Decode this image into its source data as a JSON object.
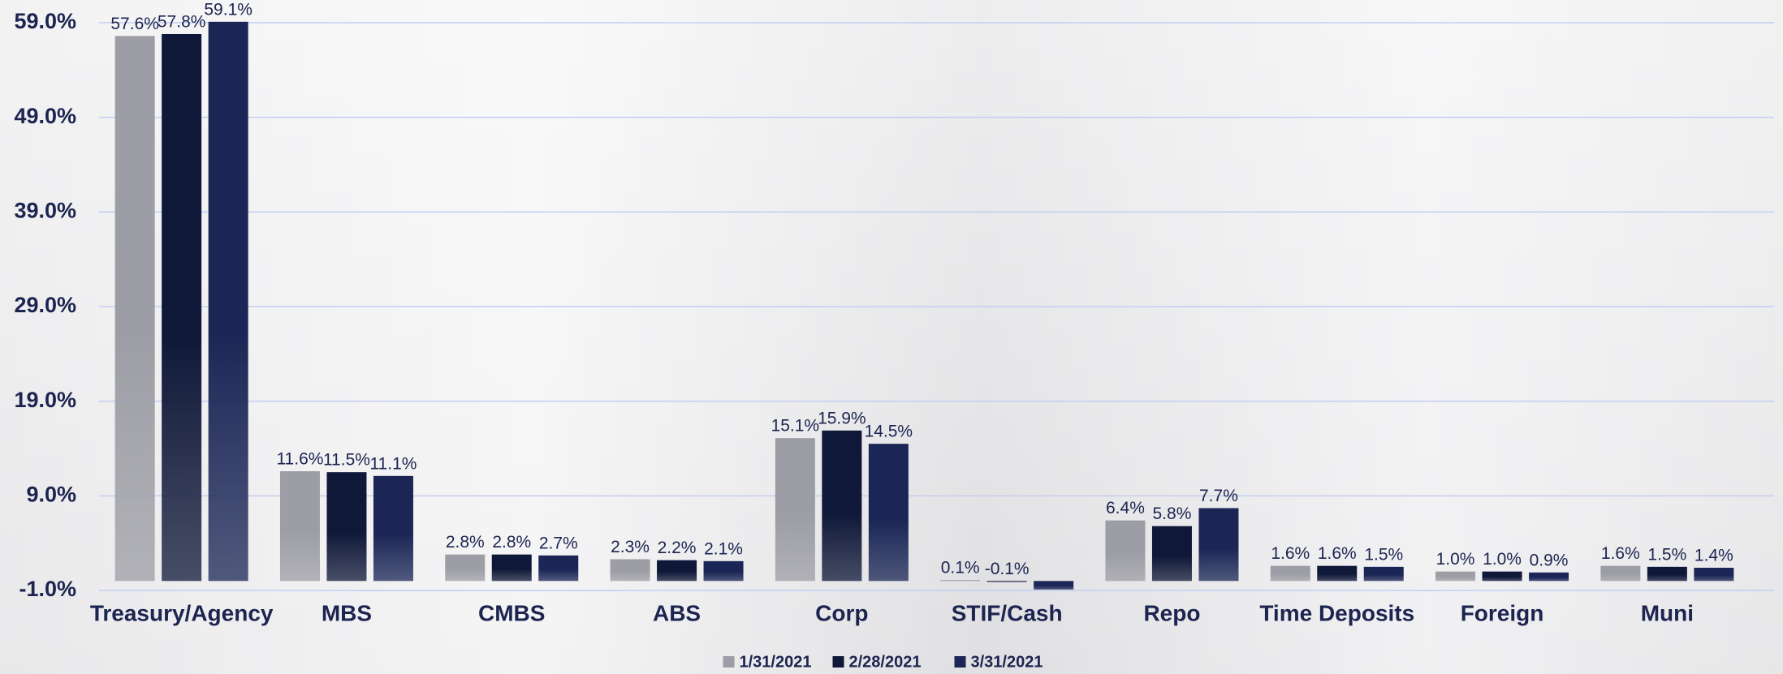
{
  "chart_data": {
    "type": "bar",
    "categories": [
      "Treasury/Agency",
      "MBS",
      "CMBS",
      "ABS",
      "Corp",
      "STIF/Cash",
      "Repo",
      "Time Deposits",
      "Foreign",
      "Muni"
    ],
    "series": [
      {
        "name": "1/31/2021",
        "color": "#9d9ea5",
        "values": [
          57.6,
          11.6,
          2.8,
          2.3,
          15.1,
          0.1,
          6.4,
          1.6,
          1.0,
          1.6
        ],
        "value_labels": [
          "57.6%",
          "11.6%",
          "2.8%",
          "2.3%",
          "15.1%",
          "0.1%",
          "6.4%",
          "1.6%",
          "1.0%",
          "1.6%"
        ]
      },
      {
        "name": "2/28/2021",
        "color": "#0f1838",
        "values": [
          57.8,
          11.5,
          2.8,
          2.2,
          15.9,
          -0.1,
          5.8,
          1.6,
          1.0,
          1.5
        ],
        "value_labels": [
          "57.8%",
          "11.5%",
          "2.8%",
          "2.2%",
          "15.9%",
          "-0.1%",
          "5.8%",
          "1.6%",
          "1.0%",
          "1.5%"
        ]
      },
      {
        "name": "3/31/2021",
        "color": "#1b2656",
        "values": [
          59.1,
          11.1,
          2.7,
          2.1,
          14.5,
          -0.9,
          7.7,
          1.5,
          0.9,
          1.4
        ],
        "value_labels": [
          "59.1%",
          "11.1%",
          "2.7%",
          "2.1%",
          "14.5%",
          null,
          "7.7%",
          "1.5%",
          "0.9%",
          "1.4%"
        ]
      }
    ],
    "ylim": [
      -1,
      59
    ],
    "yticks": [
      {
        "value": -1,
        "label": "-1.0%"
      },
      {
        "value": 9,
        "label": "9.0%"
      },
      {
        "value": 19,
        "label": "19.0%"
      },
      {
        "value": 29,
        "label": "29.0%"
      },
      {
        "value": 39,
        "label": "39.0%"
      },
      {
        "value": 49,
        "label": "49.0%"
      },
      {
        "value": 59,
        "label": "59.0%"
      }
    ],
    "grid": true,
    "legend": "bottom"
  }
}
